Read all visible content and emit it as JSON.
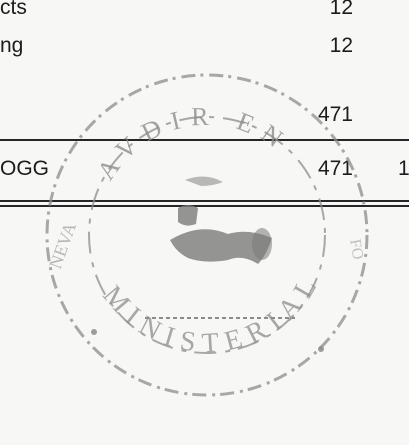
{
  "rows": [
    {
      "label": "cts",
      "value": "12"
    },
    {
      "label": "ng",
      "value": "12"
    }
  ],
  "subtotal_value": "471",
  "total_row": {
    "label": "OGG",
    "value": "471",
    "trailing": "1"
  },
  "stamp": {
    "top_text": "AVDIR EN",
    "bottom_text": "MINISTERIAL",
    "left_text": "NEVA",
    "right_text": "FO",
    "color": "#8c8c8c"
  }
}
